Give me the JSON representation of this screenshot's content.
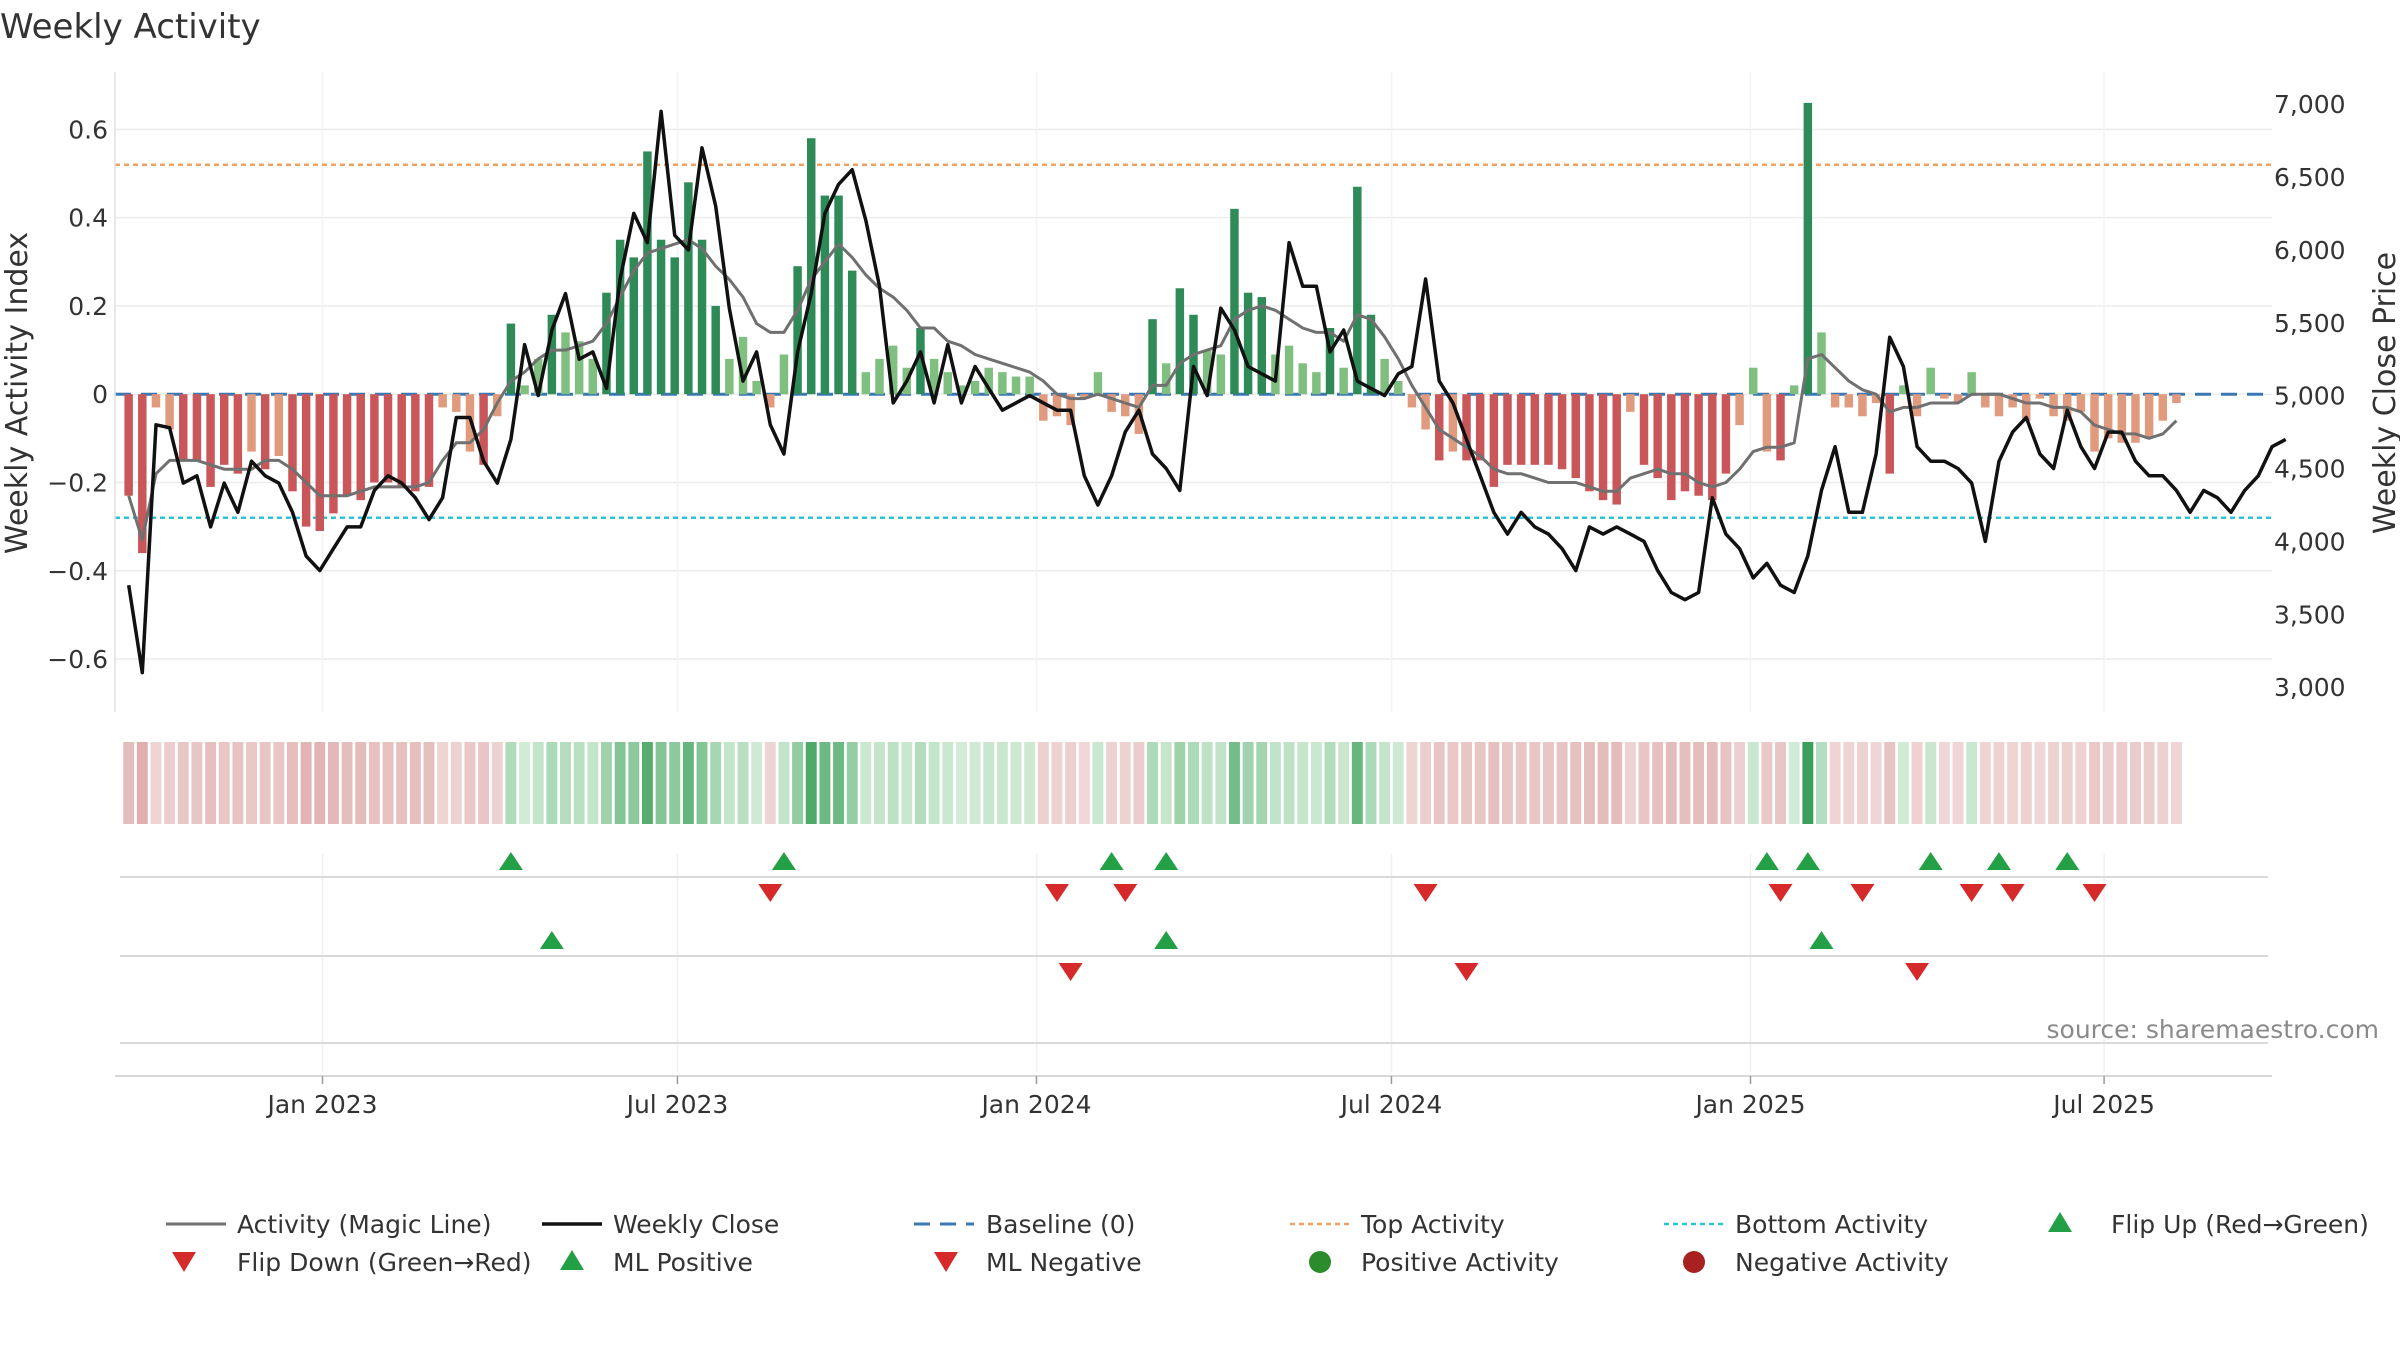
{
  "chart_data": {
    "type": "bar",
    "title": "Weekly Activity",
    "ylabel_left": "Weekly Activity Index",
    "ylabel_right": "Weekly Close Price",
    "ylim_left": [
      -0.72,
      0.73
    ],
    "ylim_right": [
      2830,
      7220
    ],
    "yticks_left": [
      0.6,
      0.4,
      0.2,
      0,
      -0.2,
      -0.4,
      -0.6
    ],
    "yticks_left_labels": [
      "0.6",
      "0.4",
      "0.2",
      "0",
      "−0.2",
      "−0.4",
      "−0.6"
    ],
    "yticks_right": [
      7000,
      6500,
      6000,
      5500,
      5000,
      4500,
      4000,
      3500,
      3000
    ],
    "yticks_right_labels": [
      "7,000",
      "6,500",
      "6,000",
      "5,500",
      "5,000",
      "4,500",
      "4,000",
      "3,500",
      "3,000"
    ],
    "x_range_weeks": [
      -1,
      157
    ],
    "xticks": [
      {
        "label": "Jan 2023",
        "week": 14.2
      },
      {
        "label": "Jul 2023",
        "week": 40.2
      },
      {
        "label": "Jan 2024",
        "week": 66.5
      },
      {
        "label": "Jul 2024",
        "week": 92.5
      },
      {
        "label": "Jan 2025",
        "week": 118.8
      },
      {
        "label": "Jul 2025",
        "week": 144.7
      }
    ],
    "top_activity": 0.52,
    "bottom_activity": -0.28,
    "baseline": 0,
    "activity": [
      -0.23,
      -0.36,
      -0.03,
      -0.08,
      -0.15,
      -0.15,
      -0.21,
      -0.16,
      -0.18,
      -0.13,
      -0.17,
      -0.14,
      -0.22,
      -0.3,
      -0.31,
      -0.27,
      -0.23,
      -0.24,
      -0.2,
      -0.2,
      -0.21,
      -0.22,
      -0.21,
      -0.03,
      -0.04,
      -0.13,
      -0.16,
      -0.05,
      0.16,
      0.02,
      0.08,
      0.18,
      0.14,
      0.12,
      0.08,
      0.23,
      0.35,
      0.31,
      0.55,
      0.35,
      0.31,
      0.48,
      0.35,
      0.2,
      0.08,
      0.13,
      0.03,
      -0.03,
      0.09,
      0.29,
      0.58,
      0.45,
      0.45,
      0.28,
      0.05,
      0.08,
      0.11,
      0.06,
      0.15,
      0.08,
      0.05,
      0.02,
      0.03,
      0.06,
      0.05,
      0.04,
      0.04,
      -0.06,
      -0.05,
      -0.07,
      -0.01,
      0.05,
      -0.04,
      -0.05,
      -0.09,
      0.17,
      0.07,
      0.24,
      0.18,
      0.1,
      0.09,
      0.42,
      0.23,
      0.22,
      0.09,
      0.11,
      0.07,
      0.05,
      0.15,
      0.06,
      0.47,
      0.18,
      0.08,
      0.03,
      -0.03,
      -0.08,
      -0.15,
      -0.13,
      -0.15,
      -0.15,
      -0.21,
      -0.16,
      -0.16,
      -0.16,
      -0.16,
      -0.17,
      -0.19,
      -0.22,
      -0.24,
      -0.25,
      -0.04,
      -0.16,
      -0.19,
      -0.24,
      -0.22,
      -0.23,
      -0.24,
      -0.18,
      -0.07,
      0.06,
      -0.13,
      -0.15,
      0.02,
      0.66,
      0.14,
      -0.03,
      -0.03,
      -0.05,
      -0.02,
      -0.18,
      0.02,
      -0.05,
      0.06,
      -0.01,
      -0.02,
      0.05,
      -0.03,
      -0.05,
      -0.03,
      -0.06,
      -0.01,
      -0.05,
      -0.06,
      -0.04,
      -0.13,
      -0.1,
      -0.11,
      -0.11,
      -0.1,
      -0.06,
      -0.02
    ],
    "magic_line": [
      -0.23,
      -0.33,
      -0.18,
      -0.15,
      -0.15,
      -0.15,
      -0.16,
      -0.17,
      -0.17,
      -0.17,
      -0.15,
      -0.15,
      -0.17,
      -0.2,
      -0.23,
      -0.23,
      -0.23,
      -0.22,
      -0.21,
      -0.21,
      -0.21,
      -0.21,
      -0.2,
      -0.15,
      -0.11,
      -0.11,
      -0.08,
      -0.02,
      0.03,
      0.05,
      0.08,
      0.1,
      0.1,
      0.11,
      0.12,
      0.16,
      0.22,
      0.28,
      0.32,
      0.33,
      0.34,
      0.35,
      0.33,
      0.29,
      0.26,
      0.22,
      0.16,
      0.14,
      0.14,
      0.19,
      0.26,
      0.3,
      0.34,
      0.31,
      0.27,
      0.24,
      0.22,
      0.19,
      0.15,
      0.15,
      0.12,
      0.11,
      0.09,
      0.08,
      0.07,
      0.06,
      0.05,
      0.03,
      0.0,
      -0.01,
      -0.01,
      0.0,
      -0.01,
      -0.02,
      -0.03,
      0.02,
      0.02,
      0.07,
      0.09,
      0.1,
      0.11,
      0.17,
      0.19,
      0.2,
      0.19,
      0.17,
      0.15,
      0.14,
      0.14,
      0.12,
      0.18,
      0.17,
      0.13,
      0.08,
      0.02,
      -0.03,
      -0.08,
      -0.1,
      -0.12,
      -0.14,
      -0.17,
      -0.18,
      -0.18,
      -0.19,
      -0.2,
      -0.2,
      -0.2,
      -0.21,
      -0.22,
      -0.22,
      -0.19,
      -0.18,
      -0.17,
      -0.18,
      -0.18,
      -0.2,
      -0.21,
      -0.2,
      -0.17,
      -0.13,
      -0.12,
      -0.12,
      -0.11,
      0.08,
      0.09,
      0.06,
      0.03,
      0.01,
      0.0,
      -0.04,
      -0.03,
      -0.03,
      -0.02,
      -0.02,
      -0.02,
      0.0,
      0.0,
      0.0,
      -0.01,
      -0.02,
      -0.02,
      -0.03,
      -0.03,
      -0.04,
      -0.07,
      -0.08,
      -0.09,
      -0.09,
      -0.1,
      -0.09,
      -0.06
    ],
    "weekly_close": [
      3700,
      3100,
      4800,
      4780,
      4400,
      4450,
      4100,
      4400,
      4200,
      4550,
      4450,
      4400,
      4200,
      3900,
      3800,
      3950,
      4100,
      4100,
      4350,
      4450,
      4400,
      4300,
      4150,
      4300,
      4850,
      4850,
      4550,
      4400,
      4700,
      5350,
      5000,
      5450,
      5700,
      5250,
      5300,
      5050,
      5800,
      6250,
      6050,
      6950,
      6100,
      6000,
      6700,
      6300,
      5600,
      5100,
      5300,
      4800,
      4600,
      5300,
      5700,
      6250,
      6450,
      6550,
      6200,
      5750,
      4950,
      5100,
      5300,
      4950,
      5350,
      4950,
      5200,
      5050,
      4900,
      4950,
      5000,
      4950,
      4900,
      4900,
      4450,
      4250,
      4450,
      4750,
      4900,
      4600,
      4500,
      4350,
      5200,
      5000,
      5600,
      5450,
      5200,
      5150,
      5100,
      6050,
      5750,
      5750,
      5300,
      5450,
      5100,
      5050,
      5000,
      5150,
      5200,
      5800,
      5100,
      4950,
      4700,
      4450,
      4200,
      4050,
      4200,
      4100,
      4050,
      3950,
      3800,
      4100,
      4050,
      4100,
      4050,
      4000,
      3800,
      3650,
      3600,
      3650,
      4300,
      4050,
      3950,
      3750,
      3850,
      3700,
      3650,
      3900,
      4350,
      4650,
      4200,
      4200,
      4600,
      5400,
      5200,
      4650,
      4550,
      4550,
      4500,
      4400,
      4000,
      4550,
      4750,
      4850,
      4600,
      4500,
      4900,
      4650,
      4500,
      4750,
      4750,
      4550,
      4450,
      4450,
      4350,
      4200,
      4350,
      4300,
      4200,
      4350,
      4450,
      4650,
      4700
    ]
  },
  "heat_strip": {
    "label": ""
  },
  "signals": {
    "flip_up_weeks": [
      28,
      48,
      72,
      76,
      120,
      123,
      132,
      137,
      142
    ],
    "flip_down_weeks": [
      47,
      68,
      73,
      95,
      121,
      127,
      135,
      138,
      144
    ],
    "ml_positive_weeks": [
      31,
      76,
      124
    ],
    "ml_negative_weeks": [
      69,
      98,
      131
    ]
  },
  "source_text": "source: sharemaestro.com",
  "legend": {
    "magic_line": "Activity (Magic Line)",
    "weekly_close": "Weekly Close",
    "baseline": "Baseline (0)",
    "top_activity": "Top Activity",
    "bottom_activity": "Bottom Activity",
    "flip_up": "Flip Up (Red→Green)",
    "flip_down": "Flip Down (Green→Red)",
    "ml_positive": "ML Positive",
    "ml_negative": "ML Negative",
    "positive_activity": "Positive Activity",
    "negative_activity": "Negative Activity"
  },
  "colors": {
    "green_dark": "#2e8b57",
    "green_light": "#7fbf7f",
    "red_dark": "#c9575a",
    "red_light": "#e09a7e",
    "magic_line": "#707070",
    "close_line": "#111111",
    "baseline": "#3a78b5",
    "top_line": "#f0a060",
    "bottom_line": "#2ec4d6",
    "marker_up": "#23a045",
    "marker_down": "#d62a2a",
    "positive_dot": "#2a8c2a",
    "negative_dot": "#a82020"
  }
}
